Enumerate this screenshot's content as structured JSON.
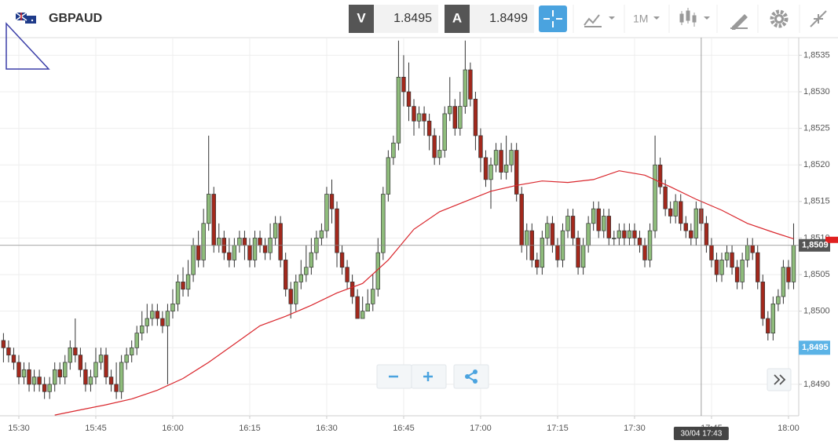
{
  "toolbar": {
    "symbol": "GBPAUD",
    "bid_label": "V",
    "bid": "1.8495",
    "ask_label": "A",
    "ask": "1.8499",
    "timeframe": "1M"
  },
  "chart_data": {
    "type": "candlestick",
    "xlim": [
      -0.67,
      155
    ],
    "ylim": [
      1.84857,
      1.85374
    ],
    "grid": true,
    "up_color": "#8fbd7c",
    "down_color": "#a3281c",
    "ma_color": "#d9262c",
    "xticks": [
      {
        "value": 3,
        "label": "15:30"
      },
      {
        "value": 18,
        "label": "15:45"
      },
      {
        "value": 33,
        "label": "16:00"
      },
      {
        "value": 48,
        "label": "16:15"
      },
      {
        "value": 63,
        "label": "16:30"
      },
      {
        "value": 78,
        "label": "16:45"
      },
      {
        "value": 93,
        "label": "17:00"
      },
      {
        "value": 108,
        "label": "17:15"
      },
      {
        "value": 123,
        "label": "17:30"
      },
      {
        "value": 138,
        "label": "17:45"
      },
      {
        "value": 153,
        "label": "18:00"
      }
    ],
    "yticks": [
      {
        "value": 1.849,
        "label": "1,8490"
      },
      {
        "value": 1.8495,
        "label": "1,8495"
      },
      {
        "value": 1.85,
        "label": "1,8500"
      },
      {
        "value": 1.8505,
        "label": "1,8505"
      },
      {
        "value": 1.851,
        "label": "1,8510"
      },
      {
        "value": 1.8515,
        "label": "1,8515"
      },
      {
        "value": 1.852,
        "label": "1,8520"
      },
      {
        "value": 1.8525,
        "label": "1,8525"
      },
      {
        "value": 1.853,
        "label": "1,8530"
      },
      {
        "value": 1.8535,
        "label": "1,8535"
      }
    ],
    "candles": [
      [
        1.8496,
        1.8497,
        1.8493,
        1.8495
      ],
      [
        1.8495,
        1.8496,
        1.8493,
        1.8494
      ],
      [
        1.8494,
        1.8495,
        1.8492,
        1.8493
      ],
      [
        1.8493,
        1.8494,
        1.849,
        1.8491
      ],
      [
        1.8491,
        1.8493,
        1.849,
        1.8492
      ],
      [
        1.8492,
        1.8493,
        1.8489,
        1.849
      ],
      [
        1.849,
        1.8492,
        1.8489,
        1.8491
      ],
      [
        1.8491,
        1.8492,
        1.8489,
        1.849
      ],
      [
        1.849,
        1.8491,
        1.8488,
        1.8489
      ],
      [
        1.8489,
        1.8491,
        1.8488,
        1.849
      ],
      [
        1.849,
        1.8493,
        1.8489,
        1.8492
      ],
      [
        1.8492,
        1.8493,
        1.849,
        1.8491
      ],
      [
        1.8491,
        1.8494,
        1.849,
        1.8493
      ],
      [
        1.8493,
        1.8496,
        1.8492,
        1.8495
      ],
      [
        1.8495,
        1.8499,
        1.8493,
        1.8494
      ],
      [
        1.8494,
        1.8495,
        1.8491,
        1.8492
      ],
      [
        1.8492,
        1.8493,
        1.8489,
        1.849
      ],
      [
        1.849,
        1.8492,
        1.8489,
        1.8491
      ],
      [
        1.8491,
        1.8495,
        1.849,
        1.8493
      ],
      [
        1.8493,
        1.8495,
        1.8492,
        1.8494
      ],
      [
        1.8494,
        1.8495,
        1.849,
        1.8491
      ],
      [
        1.8491,
        1.8492,
        1.8489,
        1.849
      ],
      [
        1.849,
        1.8493,
        1.8488,
        1.8489
      ],
      [
        1.8489,
        1.8494,
        1.8488,
        1.8493
      ],
      [
        1.8493,
        1.8495,
        1.8492,
        1.8494
      ],
      [
        1.8494,
        1.8496,
        1.8493,
        1.8495
      ],
      [
        1.8495,
        1.8498,
        1.8494,
        1.8497
      ],
      [
        1.8497,
        1.85,
        1.8496,
        1.8498
      ],
      [
        1.8498,
        1.8501,
        1.8497,
        1.8499
      ],
      [
        1.8499,
        1.8501,
        1.8498,
        1.85
      ],
      [
        1.85,
        1.8501,
        1.8498,
        1.8499
      ],
      [
        1.8499,
        1.85,
        1.8497,
        1.8498
      ],
      [
        1.8498,
        1.8501,
        1.849,
        1.85
      ],
      [
        1.85,
        1.8503,
        1.8499,
        1.8501
      ],
      [
        1.8501,
        1.8505,
        1.85,
        1.8504
      ],
      [
        1.8504,
        1.8506,
        1.8502,
        1.8503
      ],
      [
        1.8503,
        1.8507,
        1.8502,
        1.8505
      ],
      [
        1.8505,
        1.851,
        1.8504,
        1.8509
      ],
      [
        1.8509,
        1.8511,
        1.8506,
        1.8507
      ],
      [
        1.8507,
        1.8514,
        1.8506,
        1.8512
      ],
      [
        1.8512,
        1.8524,
        1.8511,
        1.8516
      ],
      [
        1.8516,
        1.8517,
        1.8508,
        1.8509
      ],
      [
        1.8509,
        1.8512,
        1.8508,
        1.851
      ],
      [
        1.851,
        1.8511,
        1.8507,
        1.8508
      ],
      [
        1.8508,
        1.851,
        1.8506,
        1.8507
      ],
      [
        1.8507,
        1.851,
        1.8506,
        1.8509
      ],
      [
        1.8509,
        1.8511,
        1.8508,
        1.851
      ],
      [
        1.851,
        1.8511,
        1.8507,
        1.8509
      ],
      [
        1.8509,
        1.851,
        1.8506,
        1.8507
      ],
      [
        1.8507,
        1.8511,
        1.8506,
        1.851
      ],
      [
        1.851,
        1.8511,
        1.8508,
        1.8509
      ],
      [
        1.8509,
        1.851,
        1.8507,
        1.8508
      ],
      [
        1.8508,
        1.8512,
        1.8507,
        1.851
      ],
      [
        1.851,
        1.8513,
        1.8509,
        1.8512
      ],
      [
        1.8512,
        1.8513,
        1.8506,
        1.8507
      ],
      [
        1.8507,
        1.8508,
        1.8502,
        1.8503
      ],
      [
        1.8503,
        1.8504,
        1.8499,
        1.8501
      ],
      [
        1.8501,
        1.8505,
        1.85,
        1.8504
      ],
      [
        1.8504,
        1.8507,
        1.8503,
        1.8505
      ],
      [
        1.8505,
        1.8509,
        1.8504,
        1.8506
      ],
      [
        1.8506,
        1.851,
        1.8505,
        1.8508
      ],
      [
        1.8508,
        1.8511,
        1.8507,
        1.851
      ],
      [
        1.851,
        1.8512,
        1.8509,
        1.8511
      ],
      [
        1.8511,
        1.8517,
        1.851,
        1.8516
      ],
      [
        1.8516,
        1.8518,
        1.8512,
        1.8514
      ],
      [
        1.8514,
        1.8515,
        1.8506,
        1.8508
      ],
      [
        1.8508,
        1.8509,
        1.8505,
        1.8506
      ],
      [
        1.8506,
        1.8507,
        1.8503,
        1.8504
      ],
      [
        1.8504,
        1.8505,
        1.8501,
        1.8502
      ],
      [
        1.8502,
        1.8503,
        1.8499,
        1.8499
      ],
      [
        1.8499,
        1.8502,
        1.8499,
        1.85
      ],
      [
        1.85,
        1.8503,
        1.85,
        1.8501
      ],
      [
        1.8501,
        1.8505,
        1.85,
        1.8503
      ],
      [
        1.8503,
        1.851,
        1.8502,
        1.8508
      ],
      [
        1.8508,
        1.8517,
        1.8507,
        1.8516
      ],
      [
        1.8516,
        1.8522,
        1.8515,
        1.8521
      ],
      [
        1.8521,
        1.8524,
        1.852,
        1.8523
      ],
      [
        1.8523,
        1.8537,
        1.8522,
        1.8532
      ],
      [
        1.8532,
        1.8535,
        1.8528,
        1.853
      ],
      [
        1.853,
        1.8534,
        1.8526,
        1.8528
      ],
      [
        1.8528,
        1.8529,
        1.8524,
        1.8526
      ],
      [
        1.8526,
        1.8528,
        1.8525,
        1.8527
      ],
      [
        1.8527,
        1.8528,
        1.8524,
        1.8526
      ],
      [
        1.8526,
        1.8527,
        1.8522,
        1.8524
      ],
      [
        1.8524,
        1.8525,
        1.852,
        1.8521
      ],
      [
        1.8521,
        1.8524,
        1.852,
        1.8522
      ],
      [
        1.8522,
        1.8528,
        1.8521,
        1.8527
      ],
      [
        1.8527,
        1.8532,
        1.8526,
        1.8528
      ],
      [
        1.8528,
        1.8529,
        1.8524,
        1.8525
      ],
      [
        1.8525,
        1.853,
        1.8524,
        1.8528
      ],
      [
        1.8528,
        1.8537,
        1.8527,
        1.8533
      ],
      [
        1.8533,
        1.8534,
        1.8528,
        1.8529
      ],
      [
        1.8529,
        1.853,
        1.8522,
        1.8524
      ],
      [
        1.8524,
        1.8525,
        1.8519,
        1.8521
      ],
      [
        1.8521,
        1.8522,
        1.8517,
        1.8518
      ],
      [
        1.8518,
        1.8521,
        1.8514,
        1.852
      ],
      [
        1.852,
        1.8523,
        1.8519,
        1.8522
      ],
      [
        1.8522,
        1.8523,
        1.8518,
        1.8519
      ],
      [
        1.8519,
        1.8524,
        1.8518,
        1.852
      ],
      [
        1.852,
        1.8523,
        1.8519,
        1.8522
      ],
      [
        1.8522,
        1.8523,
        1.8515,
        1.8516
      ],
      [
        1.8516,
        1.8517,
        1.8508,
        1.8509
      ],
      [
        1.8509,
        1.8512,
        1.8507,
        1.8511
      ],
      [
        1.8511,
        1.8512,
        1.8506,
        1.8507
      ],
      [
        1.8507,
        1.8508,
        1.8505,
        1.8506
      ],
      [
        1.8506,
        1.8511,
        1.8505,
        1.851
      ],
      [
        1.851,
        1.8513,
        1.8509,
        1.8512
      ],
      [
        1.8512,
        1.8513,
        1.8508,
        1.8509
      ],
      [
        1.8509,
        1.851,
        1.8506,
        1.8507
      ],
      [
        1.8507,
        1.8512,
        1.8506,
        1.8511
      ],
      [
        1.8511,
        1.8514,
        1.851,
        1.8513
      ],
      [
        1.8513,
        1.8514,
        1.8509,
        1.851
      ],
      [
        1.851,
        1.8511,
        1.8505,
        1.8506
      ],
      [
        1.8506,
        1.851,
        1.8505,
        1.8509
      ],
      [
        1.8509,
        1.8513,
        1.8508,
        1.8512
      ],
      [
        1.8512,
        1.8515,
        1.8511,
        1.8514
      ],
      [
        1.8514,
        1.8515,
        1.851,
        1.8511
      ],
      [
        1.8511,
        1.8514,
        1.851,
        1.8513
      ],
      [
        1.8513,
        1.8514,
        1.8509,
        1.851
      ],
      [
        1.851,
        1.8511,
        1.8509,
        1.851
      ],
      [
        1.851,
        1.8512,
        1.8509,
        1.8511
      ],
      [
        1.8511,
        1.8512,
        1.8509,
        1.851
      ],
      [
        1.851,
        1.8512,
        1.8509,
        1.8511
      ],
      [
        1.8511,
        1.8512,
        1.8509,
        1.851
      ],
      [
        1.851,
        1.8511,
        1.8508,
        1.8509
      ],
      [
        1.8509,
        1.851,
        1.8506,
        1.8507
      ],
      [
        1.8507,
        1.8512,
        1.8506,
        1.8511
      ],
      [
        1.8511,
        1.8524,
        1.851,
        1.852
      ],
      [
        1.852,
        1.8521,
        1.8516,
        1.8517
      ],
      [
        1.8517,
        1.8518,
        1.8513,
        1.8514
      ],
      [
        1.8514,
        1.8515,
        1.8512,
        1.8513
      ],
      [
        1.8513,
        1.8516,
        1.8512,
        1.8515
      ],
      [
        1.8515,
        1.8516,
        1.8511,
        1.8512
      ],
      [
        1.8512,
        1.8513,
        1.851,
        1.8511
      ],
      [
        1.8511,
        1.8512,
        1.8509,
        1.851
      ],
      [
        1.851,
        1.8515,
        1.8509,
        1.8514
      ],
      [
        1.8514,
        1.8515,
        1.8511,
        1.8512
      ],
      [
        1.8512,
        1.8513,
        1.8508,
        1.8509
      ],
      [
        1.8509,
        1.851,
        1.8506,
        1.8507
      ],
      [
        1.8507,
        1.8508,
        1.8504,
        1.8505
      ],
      [
        1.8505,
        1.8508,
        1.8504,
        1.8507
      ],
      [
        1.8507,
        1.8509,
        1.8506,
        1.8508
      ],
      [
        1.8508,
        1.8509,
        1.8505,
        1.8506
      ],
      [
        1.8506,
        1.8507,
        1.8503,
        1.8504
      ],
      [
        1.8504,
        1.8508,
        1.8503,
        1.8507
      ],
      [
        1.8507,
        1.851,
        1.8506,
        1.8509
      ],
      [
        1.8509,
        1.851,
        1.8507,
        1.8508
      ],
      [
        1.8508,
        1.8509,
        1.8503,
        1.8504
      ],
      [
        1.8504,
        1.8505,
        1.8498,
        1.8499
      ],
      [
        1.8499,
        1.85,
        1.8496,
        1.8497
      ],
      [
        1.8497,
        1.8502,
        1.8496,
        1.8501
      ],
      [
        1.8501,
        1.8503,
        1.85,
        1.8502
      ],
      [
        1.8502,
        1.8507,
        1.8501,
        1.8506
      ],
      [
        1.8506,
        1.8507,
        1.8503,
        1.8504
      ],
      [
        1.8504,
        1.8512,
        1.8503,
        1.8509
      ]
    ],
    "ma": {
      "x": [
        10,
        15,
        20,
        25,
        30,
        35,
        40,
        45,
        50,
        55,
        60,
        65,
        70,
        75,
        80,
        85,
        90,
        95,
        100,
        105,
        110,
        115,
        120,
        125,
        130,
        135,
        140,
        145,
        150,
        154
      ],
      "values": [
        1.84858,
        1.84865,
        1.84872,
        1.8488,
        1.84892,
        1.84908,
        1.8493,
        1.84955,
        1.8498,
        1.84993,
        1.85008,
        1.85025,
        1.85038,
        1.8507,
        1.85112,
        1.85136,
        1.8515,
        1.85164,
        1.85172,
        1.85178,
        1.85176,
        1.8518,
        1.85192,
        1.85186,
        1.8517,
        1.85153,
        1.85138,
        1.8512,
        1.85108,
        1.85099
      ]
    },
    "crosshair": {
      "price": 1.8509,
      "price_label": "1,8509",
      "time": 136,
      "time_label": "30/04 17:43"
    },
    "bid_marker": {
      "price": 1.8495,
      "label": "1,8495"
    }
  }
}
